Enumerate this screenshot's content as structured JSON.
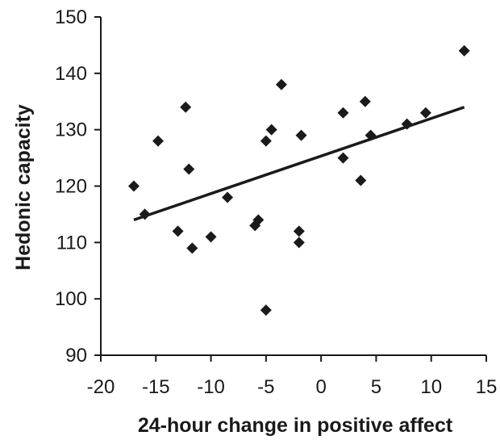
{
  "chart_data": {
    "type": "scatter",
    "title": "",
    "xlabel": "24-hour change in positive affect",
    "ylabel": "Hedonic capacity",
    "xlim": [
      -20,
      15
    ],
    "ylim": [
      90,
      150
    ],
    "xticks": [
      -20,
      -15,
      -10,
      -5,
      0,
      5,
      10,
      15
    ],
    "xtick_labels": [
      "-20",
      "-15",
      "-10",
      "-5",
      "0",
      "5",
      "10",
      "15"
    ],
    "yticks": [
      90,
      100,
      110,
      120,
      130,
      140,
      150
    ],
    "ytick_labels": [
      "90",
      "100",
      "110",
      "120",
      "130",
      "140",
      "150"
    ],
    "grid": false,
    "legend": "none",
    "marker": "diamond",
    "marker_color": "#1a1a1a",
    "series": [
      {
        "points": [
          {
            "x": -17.0,
            "y": 120
          },
          {
            "x": -16.0,
            "y": 115
          },
          {
            "x": -14.8,
            "y": 128
          },
          {
            "x": -13.0,
            "y": 112
          },
          {
            "x": -12.3,
            "y": 134
          },
          {
            "x": -12.0,
            "y": 123
          },
          {
            "x": -11.7,
            "y": 109
          },
          {
            "x": -10.0,
            "y": 111
          },
          {
            "x": -8.5,
            "y": 118
          },
          {
            "x": -6.0,
            "y": 113
          },
          {
            "x": -5.7,
            "y": 114
          },
          {
            "x": -5.0,
            "y": 128
          },
          {
            "x": -5.0,
            "y": 98
          },
          {
            "x": -4.5,
            "y": 130
          },
          {
            "x": -3.6,
            "y": 138
          },
          {
            "x": -2.0,
            "y": 112
          },
          {
            "x": -2.0,
            "y": 110
          },
          {
            "x": -1.8,
            "y": 129
          },
          {
            "x": 2.0,
            "y": 133
          },
          {
            "x": 2.0,
            "y": 125
          },
          {
            "x": 3.6,
            "y": 121
          },
          {
            "x": 4.0,
            "y": 135
          },
          {
            "x": 4.5,
            "y": 129
          },
          {
            "x": 7.8,
            "y": 131
          },
          {
            "x": 9.5,
            "y": 133
          },
          {
            "x": 13.0,
            "y": 144
          }
        ]
      }
    ],
    "trendline": {
      "x": [
        -17,
        13
      ],
      "y": [
        114,
        134
      ]
    }
  }
}
